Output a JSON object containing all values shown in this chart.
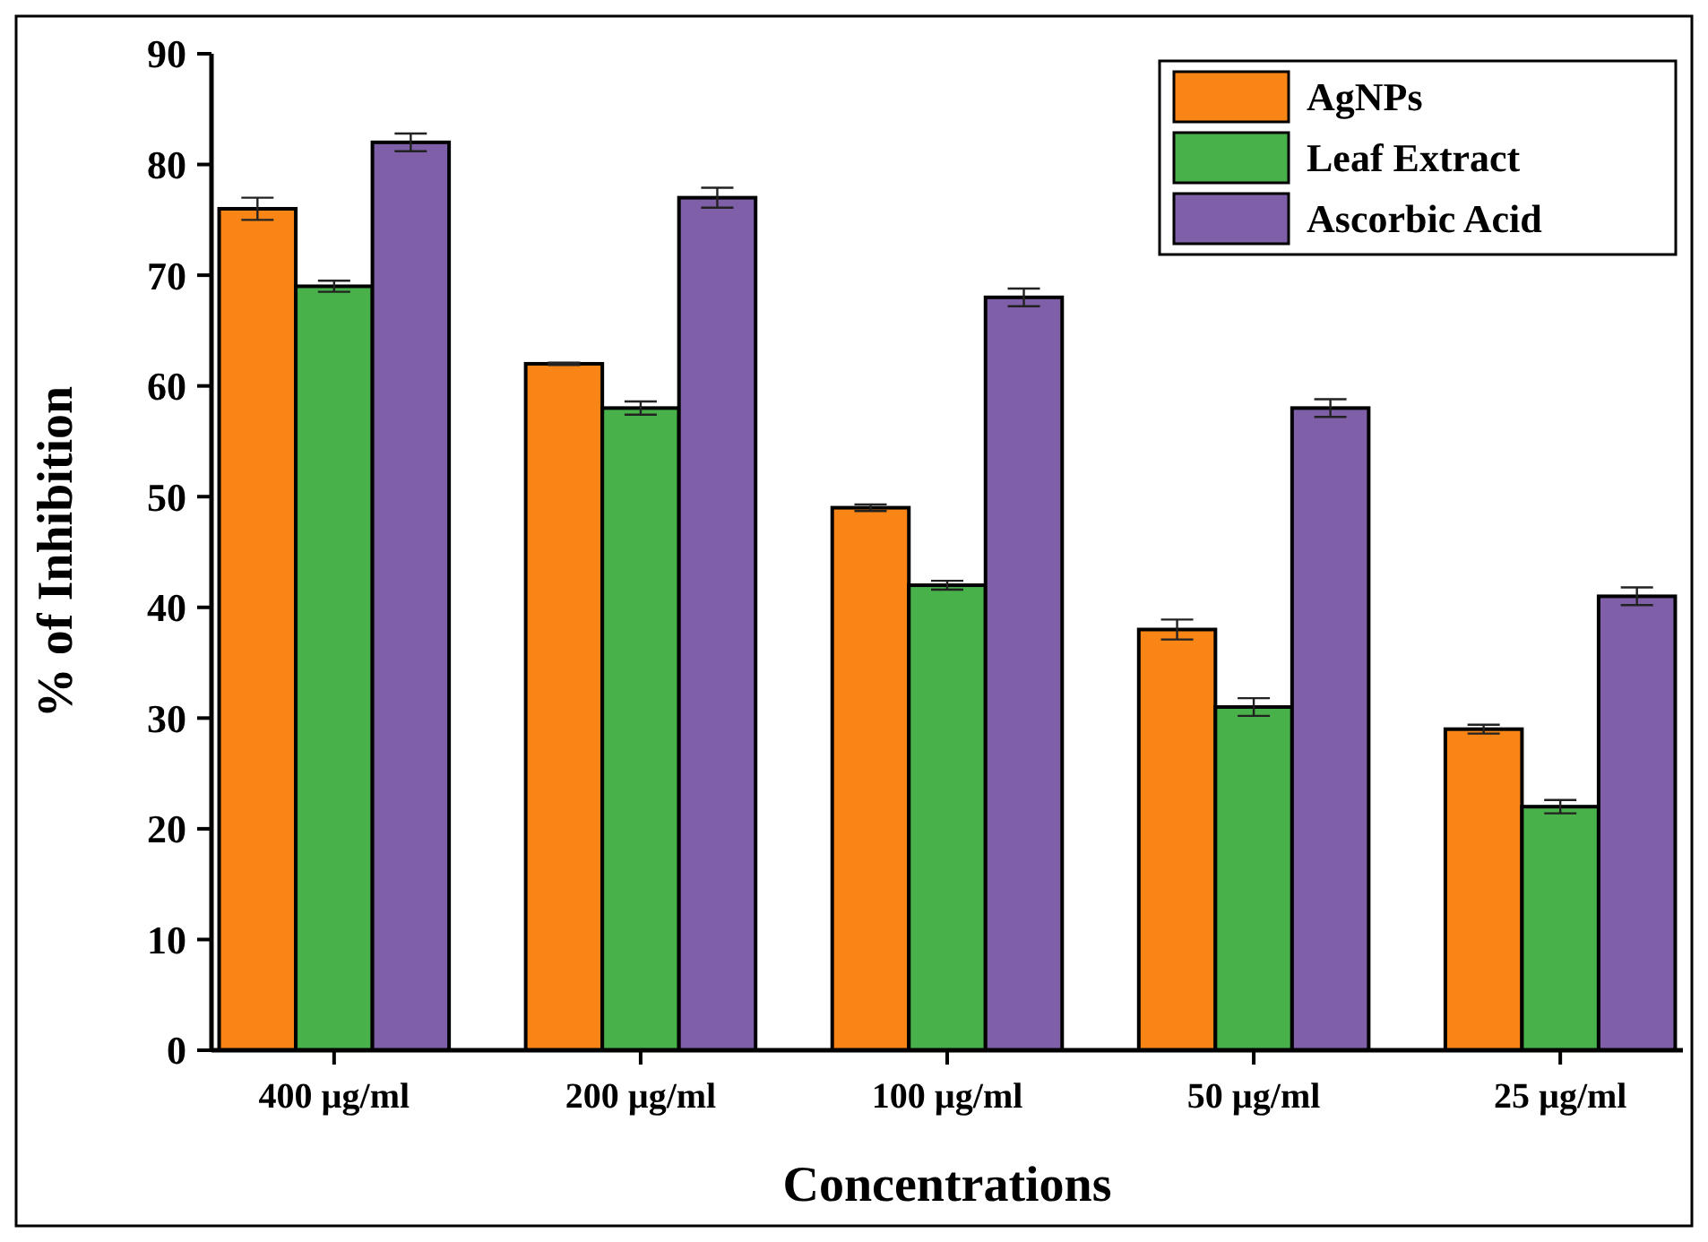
{
  "chart_data": {
    "type": "bar",
    "xlabel": "Concentrations",
    "ylabel": "% of Inhibition",
    "categories": [
      "400 µg/ml",
      "200 µg/ml",
      "100 µg/ml",
      "50 µg/ml",
      "25 µg/ml"
    ],
    "series": [
      {
        "name": "AgNPs",
        "color": "#f98517",
        "values": [
          76,
          62,
          49,
          38,
          29
        ],
        "errors": [
          1,
          0.1,
          0.3,
          0.9,
          0.4
        ]
      },
      {
        "name": "Leaf Extract",
        "color": "#48b14a",
        "values": [
          69,
          58,
          42,
          31,
          22
        ],
        "errors": [
          0.5,
          0.6,
          0.4,
          0.8,
          0.6
        ]
      },
      {
        "name": "Ascorbic Acid",
        "color": "#7f5fa8",
        "values": [
          82,
          77,
          68,
          58,
          41
        ],
        "errors": [
          0.8,
          0.9,
          0.8,
          0.8,
          0.8
        ]
      }
    ],
    "ylim": [
      0,
      90
    ],
    "yticks": [
      0,
      10,
      20,
      30,
      40,
      50,
      60,
      70,
      80,
      90
    ],
    "grid": false,
    "legend": "top right"
  }
}
